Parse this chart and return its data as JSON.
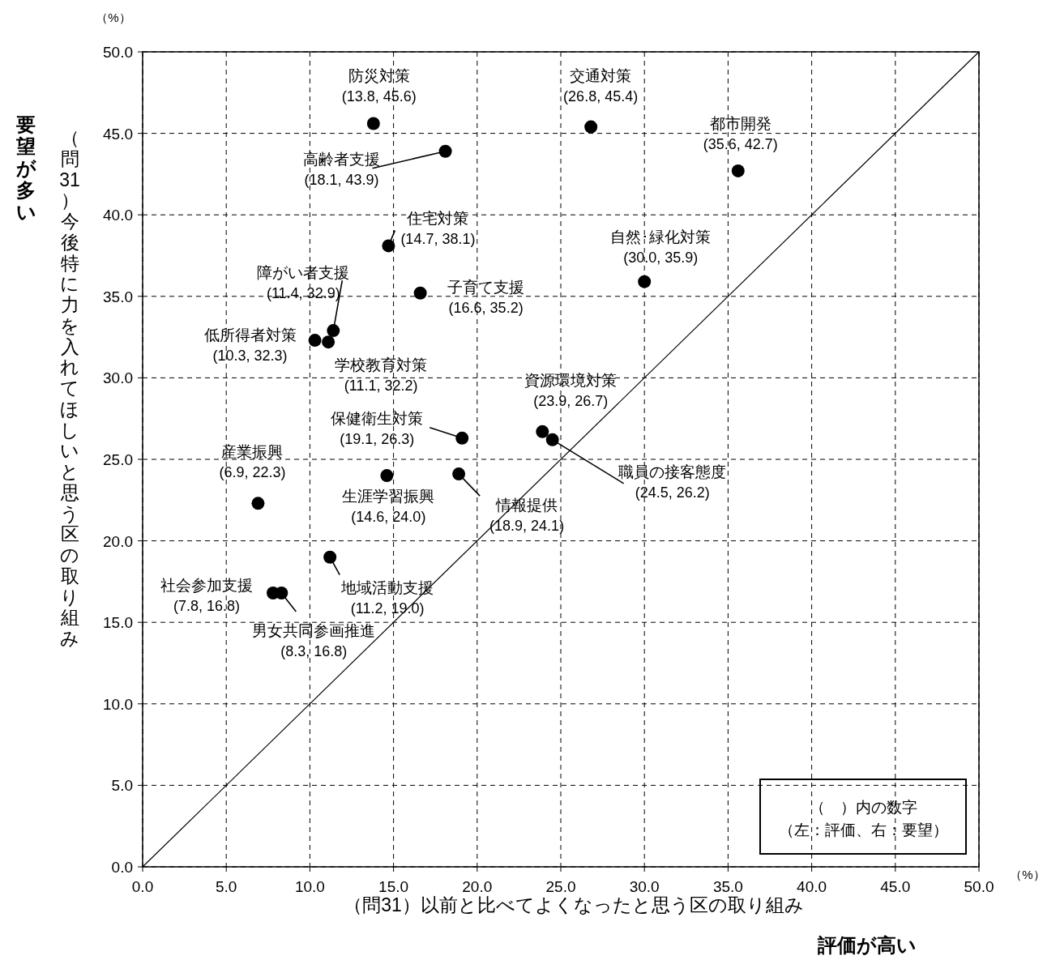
{
  "chart_data": {
    "type": "scatter",
    "xlabel": "（問31）以前と比べてよくなったと思う区の取り組み",
    "ylabel": "（問31）今後特に力を入れてほしいと思う区の取り組み",
    "xlim": [
      0,
      50
    ],
    "ylim": [
      0,
      50
    ],
    "xticks": [
      {
        "value": 0,
        "label": "0.0"
      },
      {
        "value": 5,
        "label": "5.0"
      },
      {
        "value": 10,
        "label": "10.0"
      },
      {
        "value": 15,
        "label": "15.0"
      },
      {
        "value": 20,
        "label": "20.0"
      },
      {
        "value": 25,
        "label": "25.0"
      },
      {
        "value": 30,
        "label": "30.0"
      },
      {
        "value": 35,
        "label": "35.0"
      },
      {
        "value": 40,
        "label": "40.0"
      },
      {
        "value": 45,
        "label": "45.0"
      },
      {
        "value": 50,
        "label": "50.0"
      }
    ],
    "yticks": [
      {
        "value": 0,
        "label": "0.0"
      },
      {
        "value": 5,
        "label": "5.0"
      },
      {
        "value": 10,
        "label": "10.0"
      },
      {
        "value": 15,
        "label": "15.0"
      },
      {
        "value": 20,
        "label": "20.0"
      },
      {
        "value": 25,
        "label": "25.0"
      },
      {
        "value": 30,
        "label": "30.0"
      },
      {
        "value": 35,
        "label": "35.0"
      },
      {
        "value": 40,
        "label": "40.0"
      },
      {
        "value": 45,
        "label": "45.0"
      },
      {
        "value": 50,
        "label": "50.0"
      }
    ],
    "grid": true,
    "marker": "circle",
    "series": [
      {
        "color": "#000000",
        "x": [
          13.8,
          26.8,
          35.6,
          18.1,
          14.7,
          30.0,
          11.4,
          16.6,
          10.3,
          11.1,
          23.9,
          19.1,
          24.5,
          6.9,
          14.6,
          18.9,
          11.2,
          7.8,
          8.3
        ],
        "values": [
          45.6,
          45.4,
          42.7,
          43.9,
          38.1,
          35.9,
          32.9,
          35.2,
          32.3,
          32.2,
          26.7,
          26.3,
          26.2,
          22.3,
          24.0,
          24.1,
          19.0,
          16.8,
          16.8
        ],
        "value_labels": [
          "(13.8, 45.6)",
          "(26.8, 45.4)",
          "(35.6, 42.7)",
          "(18.1, 43.9)",
          "(14.7, 38.1)",
          "(30.0, 35.9)",
          "(11.4, 32.9)",
          "(16.6, 35.2)",
          "(10.3, 32.3)",
          "(11.1, 32.2)",
          "(23.9, 26.7)",
          "(19.1, 26.3)",
          "(24.5, 26.2)",
          "(6.9, 22.3)",
          "(14.6, 24.0)",
          "(18.9, 24.1)",
          "(11.2, 19.0)",
          "(7.8, 16.8)",
          "(8.3, 16.8)"
        ]
      },
      {
        "type": "line",
        "color": "#000000",
        "marker": "none",
        "line_style": "solid",
        "x": [
          0,
          50
        ],
        "values": [
          0,
          50
        ]
      }
    ],
    "annotations": [
      {
        "text": "防災対策",
        "x": 13.8,
        "y": 45.6
      },
      {
        "text": "交通対策",
        "x": 26.8,
        "y": 45.4
      },
      {
        "text": "都市開発",
        "x": 35.6,
        "y": 42.7
      },
      {
        "text": "高齢者支援",
        "x": 18.1,
        "y": 43.9
      },
      {
        "text": "住宅対策",
        "x": 14.7,
        "y": 38.1
      },
      {
        "text": "自然･緑化対策",
        "x": 30.0,
        "y": 35.9
      },
      {
        "text": "障がい者支援",
        "x": 11.4,
        "y": 32.9
      },
      {
        "text": "子育て支援",
        "x": 16.6,
        "y": 35.2
      },
      {
        "text": "低所得者対策",
        "x": 10.3,
        "y": 32.3
      },
      {
        "text": "学校教育対策",
        "x": 11.1,
        "y": 32.2
      },
      {
        "text": "資源環境対策",
        "x": 23.9,
        "y": 26.7
      },
      {
        "text": "保健衛生対策",
        "x": 19.1,
        "y": 26.3
      },
      {
        "text": "職員の接客態度",
        "x": 24.5,
        "y": 26.2
      },
      {
        "text": "産業振興",
        "x": 6.9,
        "y": 22.3
      },
      {
        "text": "生涯学習振興",
        "x": 14.6,
        "y": 24.0
      },
      {
        "text": "情報提供",
        "x": 18.9,
        "y": 24.1
      },
      {
        "text": "地域活動支援",
        "x": 11.2,
        "y": 19.0
      },
      {
        "text": "社会参加支援",
        "x": 7.8,
        "y": 16.8
      },
      {
        "text": "男女共同参画推進",
        "x": 8.3,
        "y": 16.8
      },
      "評価が高い",
      "要望が多い",
      "（%）",
      "（%）",
      "（　）内の数字",
      "（左：評価、右：要望）"
    ]
  }
}
